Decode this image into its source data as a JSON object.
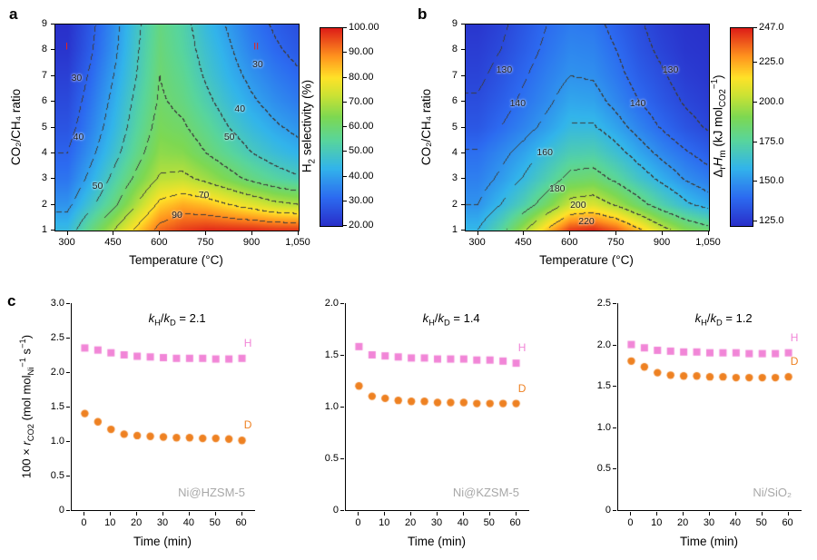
{
  "letters": {
    "a": "a",
    "b": "b",
    "c": "c"
  },
  "chart_data": [
    {
      "id": "a",
      "type": "heatmap",
      "xlabel": "Temperature (°C)",
      "ylabel": "CO₂/CH₄ ratio",
      "colorbar_label_html": "H<sub>2</sub> selectivity (%)",
      "xlim": [
        260,
        1050
      ],
      "ylim": [
        1,
        9
      ],
      "vmin": 20,
      "vmax": 100,
      "xticks": [
        {
          "v": 300,
          "t": "300"
        },
        {
          "v": 450,
          "t": "450"
        },
        {
          "v": 600,
          "t": "600"
        },
        {
          "v": 750,
          "t": "750"
        },
        {
          "v": 900,
          "t": "900"
        },
        {
          "v": 1050,
          "t": "1,050"
        }
      ],
      "yticks": [
        {
          "v": 1,
          "t": "1"
        },
        {
          "v": 2,
          "t": "2"
        },
        {
          "v": 3,
          "t": "3"
        },
        {
          "v": 4,
          "t": "4"
        },
        {
          "v": 5,
          "t": "5"
        },
        {
          "v": 6,
          "t": "6"
        },
        {
          "v": 7,
          "t": "7"
        },
        {
          "v": 8,
          "t": "8"
        },
        {
          "v": 9,
          "t": "9"
        }
      ],
      "colorbar_ticks": [
        {
          "v": 100,
          "t": "100.00"
        },
        {
          "v": 90,
          "t": "90.00"
        },
        {
          "v": 80,
          "t": "80.00"
        },
        {
          "v": 70,
          "t": "70.00"
        },
        {
          "v": 60,
          "t": "60.00"
        },
        {
          "v": 50,
          "t": "50.00"
        },
        {
          "v": 40,
          "t": "40.00"
        },
        {
          "v": 30,
          "t": "30.00"
        },
        {
          "v": 20,
          "t": "20.00"
        }
      ],
      "contour_levels": [
        30,
        40,
        50,
        60,
        70,
        80,
        90
      ],
      "grid_temps": [
        300,
        375,
        450,
        525,
        600,
        675,
        750,
        825,
        900,
        975,
        1050
      ],
      "grid_ratios": [
        1,
        2,
        3,
        4,
        5,
        6,
        7,
        8,
        9
      ],
      "grid_values": [
        [
          45,
          58,
          70,
          82,
          93,
          97,
          99,
          99,
          99,
          98,
          98
        ],
        [
          38,
          48,
          58,
          70,
          82,
          86,
          84,
          80,
          76,
          72,
          70
        ],
        [
          33,
          42,
          52,
          62,
          71,
          72,
          68,
          63,
          58,
          54,
          51
        ],
        [
          30,
          38,
          47,
          57,
          66,
          65,
          60,
          55,
          50,
          46,
          43
        ],
        [
          27,
          35,
          44,
          54,
          63,
          61,
          56,
          50,
          45,
          41,
          38
        ],
        [
          25,
          33,
          42,
          52,
          61,
          58,
          52,
          46,
          41,
          37,
          34
        ],
        [
          23,
          31,
          40,
          50,
          60,
          56,
          49,
          43,
          38,
          34,
          31
        ],
        [
          21,
          29,
          38,
          49,
          59,
          54,
          47,
          41,
          35,
          31,
          28
        ],
        [
          20,
          28,
          37,
          48,
          58,
          53,
          45,
          39,
          33,
          29,
          26
        ]
      ],
      "contour_labels": [
        {
          "t": "30",
          "x": 332,
          "y": 6.9
        },
        {
          "t": "40",
          "x": 338,
          "y": 4.6
        },
        {
          "t": "50",
          "x": 400,
          "y": 2.7
        },
        {
          "t": "30",
          "x": 920,
          "y": 7.4
        },
        {
          "t": "40",
          "x": 862,
          "y": 5.7
        },
        {
          "t": "50",
          "x": 828,
          "y": 4.6
        },
        {
          "t": "70",
          "x": 745,
          "y": 2.35
        },
        {
          "t": "90",
          "x": 658,
          "y": 1.55
        }
      ],
      "region_labels": [
        {
          "t": "I",
          "x": 300,
          "y": 8.1
        },
        {
          "t": "II",
          "x": 915,
          "y": 8.1
        }
      ]
    },
    {
      "id": "b",
      "type": "heatmap",
      "xlabel": "Temperature (°C)",
      "ylabel": "CO₂/CH₄ ratio",
      "colorbar_label_html": "Δ<sub>r</sub><i>H</i><sub>m</sub> (kJ mol<sub>CO2</sub><sup>−1</sup>)",
      "xlim": [
        260,
        1050
      ],
      "ylim": [
        1,
        9
      ],
      "vmin": 122,
      "vmax": 247,
      "xticks": [
        {
          "v": 300,
          "t": "300"
        },
        {
          "v": 450,
          "t": "450"
        },
        {
          "v": 600,
          "t": "600"
        },
        {
          "v": 750,
          "t": "750"
        },
        {
          "v": 900,
          "t": "900"
        },
        {
          "v": 1050,
          "t": "1,050"
        }
      ],
      "yticks": [
        {
          "v": 1,
          "t": "1"
        },
        {
          "v": 2,
          "t": "2"
        },
        {
          "v": 3,
          "t": "3"
        },
        {
          "v": 4,
          "t": "4"
        },
        {
          "v": 5,
          "t": "5"
        },
        {
          "v": 6,
          "t": "6"
        },
        {
          "v": 7,
          "t": "7"
        },
        {
          "v": 8,
          "t": "8"
        },
        {
          "v": 9,
          "t": "9"
        }
      ],
      "colorbar_ticks": [
        {
          "v": 247,
          "t": "247.0"
        },
        {
          "v": 225,
          "t": "225.0"
        },
        {
          "v": 200,
          "t": "200.0"
        },
        {
          "v": 175,
          "t": "175.0"
        },
        {
          "v": 150,
          "t": "150.0"
        },
        {
          "v": 125,
          "t": "125.0"
        }
      ],
      "contour_levels": [
        130,
        140,
        150,
        160,
        180,
        200,
        220
      ],
      "grid_temps": [
        300,
        375,
        450,
        525,
        600,
        675,
        750,
        825,
        900,
        975,
        1050
      ],
      "grid_ratios": [
        1,
        2,
        3,
        4,
        5,
        6,
        7,
        8,
        9
      ],
      "grid_values": [
        [
          160,
          175,
          198,
          222,
          243,
          246,
          238,
          222,
          205,
          192,
          185
        ],
        [
          150,
          160,
          172,
          188,
          205,
          208,
          198,
          185,
          172,
          162,
          155
        ],
        [
          145,
          152,
          161,
          172,
          184,
          186,
          177,
          166,
          157,
          149,
          144
        ],
        [
          141,
          147,
          154,
          163,
          171,
          172,
          164,
          155,
          147,
          141,
          136
        ],
        [
          134,
          140,
          146,
          153,
          161,
          161,
          154,
          146,
          139,
          133,
          129
        ],
        [
          131,
          136,
          142,
          148,
          155,
          154,
          147,
          140,
          134,
          129,
          126
        ],
        [
          128,
          133,
          139,
          145,
          150,
          149,
          143,
          136,
          131,
          126,
          124
        ],
        [
          126,
          130,
          136,
          142,
          147,
          146,
          140,
          133,
          128,
          124,
          123
        ],
        [
          124,
          128,
          134,
          140,
          144,
          143,
          137,
          131,
          126,
          123,
          122
        ]
      ],
      "contour_labels": [
        {
          "t": "130",
          "x": 388,
          "y": 7.2
        },
        {
          "t": "140",
          "x": 432,
          "y": 5.9
        },
        {
          "t": "160",
          "x": 520,
          "y": 4.0
        },
        {
          "t": "180",
          "x": 560,
          "y": 2.6
        },
        {
          "t": "200",
          "x": 628,
          "y": 1.95
        },
        {
          "t": "220",
          "x": 655,
          "y": 1.32
        },
        {
          "t": "140",
          "x": 822,
          "y": 5.9
        },
        {
          "t": "130",
          "x": 928,
          "y": 7.2
        }
      ],
      "region_labels": []
    },
    {
      "id": "c",
      "type": "scatter",
      "xlabel": "Time (min)",
      "ylabel_html": "100 × <i>r</i><sub>CO2</sub> (mol mol<sub>Ni</sub><sup>−1</sup> s<sup>−1</sup>)",
      "xlim": [
        -5,
        65
      ],
      "time": [
        0,
        5,
        10,
        15,
        20,
        25,
        30,
        35,
        40,
        45,
        50,
        55,
        60
      ],
      "xticks": [
        {
          "v": 0,
          "t": "0"
        },
        {
          "v": 10,
          "t": "10"
        },
        {
          "v": 20,
          "t": "20"
        },
        {
          "v": 30,
          "t": "30"
        },
        {
          "v": 40,
          "t": "40"
        },
        {
          "v": 50,
          "t": "50"
        },
        {
          "v": 60,
          "t": "60"
        }
      ],
      "subplots": [
        {
          "name": "Ni@HZSM-5",
          "kie_html": "<i>k</i><sub>H</sub>/<i>k</i><sub>D</sub> = 2.1",
          "ymax": 3.0,
          "yticks": [
            {
              "v": 0,
              "t": "0"
            },
            {
              "v": 0.5,
              "t": "0.5"
            },
            {
              "v": 1,
              "t": "1.0"
            },
            {
              "v": 1.5,
              "t": "1.5"
            },
            {
              "v": 2,
              "t": "2.0"
            },
            {
              "v": 2.5,
              "t": "2.5"
            },
            {
              "v": 3,
              "t": "3.0"
            }
          ],
          "series": [
            {
              "name": "H",
              "marker": "square",
              "color": "#f186d7",
              "values": [
                2.35,
                2.32,
                2.28,
                2.25,
                2.23,
                2.22,
                2.21,
                2.2,
                2.2,
                2.2,
                2.19,
                2.19,
                2.2
              ]
            },
            {
              "name": "D",
              "marker": "circle",
              "color": "#ee8122",
              "values": [
                1.4,
                1.28,
                1.17,
                1.1,
                1.08,
                1.07,
                1.06,
                1.05,
                1.05,
                1.04,
                1.04,
                1.03,
                1.01
              ]
            }
          ]
        },
        {
          "name": "Ni@KZSM-5",
          "kie_html": "<i>k</i><sub>H</sub>/<i>k</i><sub>D</sub> = 1.4",
          "ymax": 2.0,
          "yticks": [
            {
              "v": 0,
              "t": "0"
            },
            {
              "v": 0.5,
              "t": "0.5"
            },
            {
              "v": 1,
              "t": "1.0"
            },
            {
              "v": 1.5,
              "t": "1.5"
            },
            {
              "v": 2,
              "t": "2.0"
            }
          ],
          "series": [
            {
              "name": "H",
              "marker": "square",
              "color": "#f186d7",
              "values": [
                1.58,
                1.5,
                1.49,
                1.48,
                1.47,
                1.47,
                1.46,
                1.46,
                1.46,
                1.45,
                1.45,
                1.44,
                1.42
              ]
            },
            {
              "name": "D",
              "marker": "circle",
              "color": "#ee8122",
              "values": [
                1.2,
                1.1,
                1.08,
                1.06,
                1.05,
                1.05,
                1.04,
                1.04,
                1.04,
                1.03,
                1.03,
                1.03,
                1.03
              ]
            }
          ]
        },
        {
          "name": "Ni/SiO₂",
          "kie_html": "<i>k</i><sub>H</sub>/<i>k</i><sub>D</sub> = 1.2",
          "ymax": 2.5,
          "yticks": [
            {
              "v": 0,
              "t": "0"
            },
            {
              "v": 0.5,
              "t": "0.5"
            },
            {
              "v": 1,
              "t": "1.0"
            },
            {
              "v": 1.5,
              "t": "1.5"
            },
            {
              "v": 2,
              "t": "2.0"
            },
            {
              "v": 2.5,
              "t": "2.5"
            }
          ],
          "series": [
            {
              "name": "H",
              "marker": "square",
              "color": "#f186d7",
              "values": [
                2.0,
                1.96,
                1.93,
                1.92,
                1.91,
                1.91,
                1.9,
                1.9,
                1.9,
                1.89,
                1.89,
                1.89,
                1.9
              ]
            },
            {
              "name": "D",
              "marker": "circle",
              "color": "#ee8122",
              "values": [
                1.8,
                1.73,
                1.66,
                1.63,
                1.62,
                1.62,
                1.61,
                1.61,
                1.6,
                1.6,
                1.6,
                1.6,
                1.61
              ]
            }
          ]
        }
      ]
    }
  ],
  "colors": {
    "h_series": "#f186d7",
    "d_series": "#ee8122",
    "region_label": "#e8251d",
    "catalyst_gray": "#a8a8a8",
    "contour_line": "#3c3c3c"
  }
}
